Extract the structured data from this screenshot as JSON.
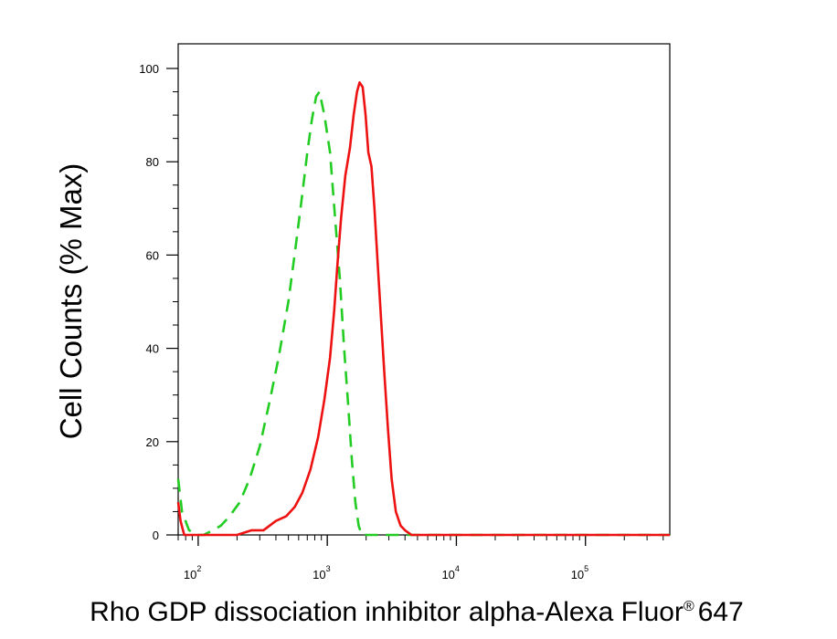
{
  "chart_data": {
    "type": "line",
    "title": "",
    "xlabel": "Rho GDP dissociation inhibitor alpha-Alexa Fluor",
    "xlabel_mark": "®",
    "xlabel_suffix": "647",
    "ylabel": "Cell Counts (% Max)",
    "xscale": "log",
    "xlim": [
      70,
      450000
    ],
    "ylim": [
      0,
      100
    ],
    "yticks": [
      0,
      20,
      40,
      60,
      80,
      100
    ],
    "xticks": [
      {
        "value": 100,
        "base": "10",
        "exp": "2"
      },
      {
        "value": 1000,
        "base": "10",
        "exp": "3"
      },
      {
        "value": 10000,
        "base": "10",
        "exp": "4"
      },
      {
        "value": 100000,
        "base": "10",
        "exp": "5"
      }
    ],
    "grid": false,
    "series": [
      {
        "style": "dashed",
        "color": "#22cc22",
        "points": [
          [
            70,
            12
          ],
          [
            75,
            5
          ],
          [
            85,
            1
          ],
          [
            100,
            0
          ],
          [
            110,
            0
          ],
          [
            130,
            1
          ],
          [
            150,
            2
          ],
          [
            175,
            4
          ],
          [
            210,
            7
          ],
          [
            250,
            12
          ],
          [
            300,
            19
          ],
          [
            360,
            29
          ],
          [
            420,
            38
          ],
          [
            500,
            50
          ],
          [
            570,
            62
          ],
          [
            640,
            73
          ],
          [
            700,
            82
          ],
          [
            760,
            89
          ],
          [
            820,
            94
          ],
          [
            870,
            95
          ],
          [
            950,
            90
          ],
          [
            1050,
            82
          ],
          [
            1150,
            68
          ],
          [
            1250,
            55
          ],
          [
            1350,
            40
          ],
          [
            1450,
            28
          ],
          [
            1550,
            16
          ],
          [
            1650,
            7
          ],
          [
            1750,
            2
          ],
          [
            1850,
            0
          ],
          [
            2100,
            0
          ],
          [
            3000,
            0
          ],
          [
            10000,
            0
          ],
          [
            100000,
            0
          ],
          [
            450000,
            0
          ]
        ]
      },
      {
        "style": "solid",
        "color": "#ee1111",
        "points": [
          [
            70,
            7
          ],
          [
            73,
            3
          ],
          [
            78,
            0
          ],
          [
            100,
            0
          ],
          [
            150,
            0
          ],
          [
            200,
            0
          ],
          [
            260,
            1
          ],
          [
            320,
            1
          ],
          [
            400,
            3
          ],
          [
            480,
            4
          ],
          [
            560,
            6
          ],
          [
            640,
            9
          ],
          [
            740,
            14
          ],
          [
            850,
            21
          ],
          [
            950,
            29
          ],
          [
            1050,
            38
          ],
          [
            1130,
            48
          ],
          [
            1200,
            58
          ],
          [
            1280,
            68
          ],
          [
            1380,
            77
          ],
          [
            1500,
            83
          ],
          [
            1600,
            90
          ],
          [
            1700,
            95
          ],
          [
            1780,
            97
          ],
          [
            1880,
            96
          ],
          [
            1980,
            90
          ],
          [
            2080,
            82
          ],
          [
            2200,
            79
          ],
          [
            2320,
            70
          ],
          [
            2460,
            58
          ],
          [
            2600,
            47
          ],
          [
            2760,
            35
          ],
          [
            2950,
            23
          ],
          [
            3150,
            12
          ],
          [
            3400,
            5
          ],
          [
            3700,
            2
          ],
          [
            4000,
            1
          ],
          [
            4500,
            0
          ],
          [
            6000,
            0
          ],
          [
            20000,
            0
          ],
          [
            100000,
            0
          ],
          [
            450000,
            0
          ]
        ]
      }
    ]
  }
}
